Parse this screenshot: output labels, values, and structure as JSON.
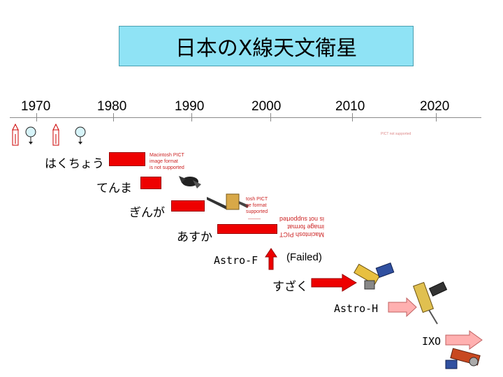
{
  "title": "日本のX線天文衛星",
  "years": [
    "1970",
    "1980",
    "1990",
    "2000",
    "2010",
    "2020"
  ],
  "satellites": {
    "hakucho": "はくちょう",
    "tenma": "てんま",
    "ginga": "ぎんが",
    "asuka": "あすか",
    "astro_f": "Astro-F",
    "failed": "(Failed)",
    "suzaku": "すざく",
    "astro_h": "Astro-H",
    "ixo": "IXO"
  },
  "placeholders": {
    "pict1": [
      "Macintosh PICT",
      "image format",
      "is not supported"
    ],
    "pict_small": [
      "tosh PICT",
      "ge format",
      "supported"
    ],
    "pict_mirror": [
      "Macintosh PICT",
      "image format",
      "is not supported"
    ],
    "tiny": "PICT not supported"
  },
  "colors": {
    "title_bg": "#8fe3f5",
    "bar_red": "#ee0000",
    "arrow_pink": "#ffb0b0"
  }
}
